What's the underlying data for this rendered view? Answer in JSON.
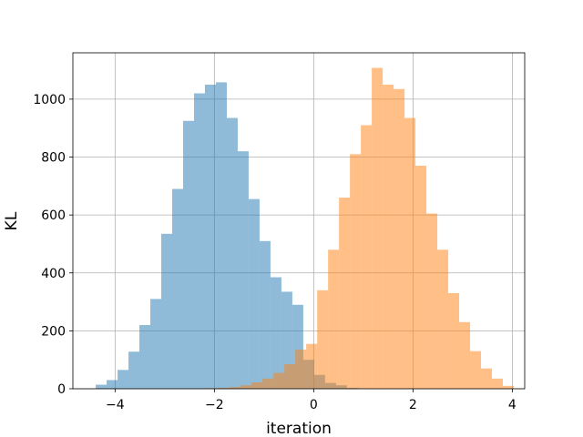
{
  "chart_data": {
    "type": "histogram",
    "title": "",
    "xlabel": "iteration",
    "ylabel": "KL",
    "xlim": [
      -4.85,
      4.25
    ],
    "ylim": [
      0,
      1160
    ],
    "xticks": [
      -4,
      -2,
      0,
      2,
      4
    ],
    "xtick_labels": [
      "−4",
      "−2",
      "0",
      "2",
      "4"
    ],
    "yticks": [
      0,
      200,
      400,
      600,
      800,
      1000
    ],
    "ytick_labels": [
      "0",
      "200",
      "400",
      "600",
      "800",
      "1000"
    ],
    "grid": true,
    "legend": "none",
    "series": [
      {
        "color": "#1f77b4",
        "alpha": 0.5,
        "bins": [
          {
            "x0": -4.39,
            "x1": -4.17,
            "count": 14
          },
          {
            "x0": -4.17,
            "x1": -3.95,
            "count": 30
          },
          {
            "x0": -3.95,
            "x1": -3.73,
            "count": 65
          },
          {
            "x0": -3.73,
            "x1": -3.51,
            "count": 128
          },
          {
            "x0": -3.51,
            "x1": -3.29,
            "count": 220
          },
          {
            "x0": -3.29,
            "x1": -3.07,
            "count": 310
          },
          {
            "x0": -3.07,
            "x1": -2.85,
            "count": 535
          },
          {
            "x0": -2.85,
            "x1": -2.63,
            "count": 690
          },
          {
            "x0": -2.63,
            "x1": -2.41,
            "count": 925
          },
          {
            "x0": -2.41,
            "x1": -2.19,
            "count": 1020
          },
          {
            "x0": -2.19,
            "x1": -1.97,
            "count": 1050
          },
          {
            "x0": -1.97,
            "x1": -1.75,
            "count": 1058
          },
          {
            "x0": -1.75,
            "x1": -1.53,
            "count": 935
          },
          {
            "x0": -1.53,
            "x1": -1.31,
            "count": 820
          },
          {
            "x0": -1.31,
            "x1": -1.09,
            "count": 655
          },
          {
            "x0": -1.09,
            "x1": -0.87,
            "count": 510
          },
          {
            "x0": -0.87,
            "x1": -0.65,
            "count": 385
          },
          {
            "x0": -0.65,
            "x1": -0.43,
            "count": 335
          },
          {
            "x0": -0.43,
            "x1": -0.21,
            "count": 290
          },
          {
            "x0": -0.21,
            "x1": 0.01,
            "count": 100
          },
          {
            "x0": 0.01,
            "x1": 0.23,
            "count": 48
          },
          {
            "x0": 0.23,
            "x1": 0.45,
            "count": 20
          },
          {
            "x0": 0.45,
            "x1": 0.67,
            "count": 12
          },
          {
            "x0": 0.67,
            "x1": 0.89,
            "count": 3
          }
        ]
      },
      {
        "color": "#ff7f0e",
        "alpha": 0.5,
        "bins": [
          {
            "x0": -2.35,
            "x1": -2.13,
            "count": 1
          },
          {
            "x0": -2.13,
            "x1": -1.91,
            "count": 2
          },
          {
            "x0": -1.91,
            "x1": -1.69,
            "count": 3
          },
          {
            "x0": -1.69,
            "x1": -1.47,
            "count": 6
          },
          {
            "x0": -1.47,
            "x1": -1.25,
            "count": 12
          },
          {
            "x0": -1.25,
            "x1": -1.03,
            "count": 22
          },
          {
            "x0": -1.03,
            "x1": -0.81,
            "count": 35
          },
          {
            "x0": -0.81,
            "x1": -0.59,
            "count": 55
          },
          {
            "x0": -0.59,
            "x1": -0.37,
            "count": 85
          },
          {
            "x0": -0.37,
            "x1": -0.15,
            "count": 135
          },
          {
            "x0": -0.15,
            "x1": 0.07,
            "count": 155
          },
          {
            "x0": 0.07,
            "x1": 0.29,
            "count": 340
          },
          {
            "x0": 0.29,
            "x1": 0.51,
            "count": 480
          },
          {
            "x0": 0.51,
            "x1": 0.73,
            "count": 660
          },
          {
            "x0": 0.73,
            "x1": 0.95,
            "count": 810
          },
          {
            "x0": 0.95,
            "x1": 1.17,
            "count": 910
          },
          {
            "x0": 1.17,
            "x1": 1.39,
            "count": 1108
          },
          {
            "x0": 1.39,
            "x1": 1.61,
            "count": 1050
          },
          {
            "x0": 1.61,
            "x1": 1.83,
            "count": 1035
          },
          {
            "x0": 1.83,
            "x1": 2.05,
            "count": 935
          },
          {
            "x0": 2.05,
            "x1": 2.27,
            "count": 770
          },
          {
            "x0": 2.27,
            "x1": 2.49,
            "count": 605
          },
          {
            "x0": 2.49,
            "x1": 2.71,
            "count": 480
          },
          {
            "x0": 2.71,
            "x1": 2.93,
            "count": 330
          },
          {
            "x0": 2.93,
            "x1": 3.15,
            "count": 230
          },
          {
            "x0": 3.15,
            "x1": 3.37,
            "count": 130
          },
          {
            "x0": 3.37,
            "x1": 3.59,
            "count": 70
          },
          {
            "x0": 3.59,
            "x1": 3.81,
            "count": 35
          },
          {
            "x0": 3.81,
            "x1": 4.03,
            "count": 10
          }
        ]
      }
    ]
  }
}
